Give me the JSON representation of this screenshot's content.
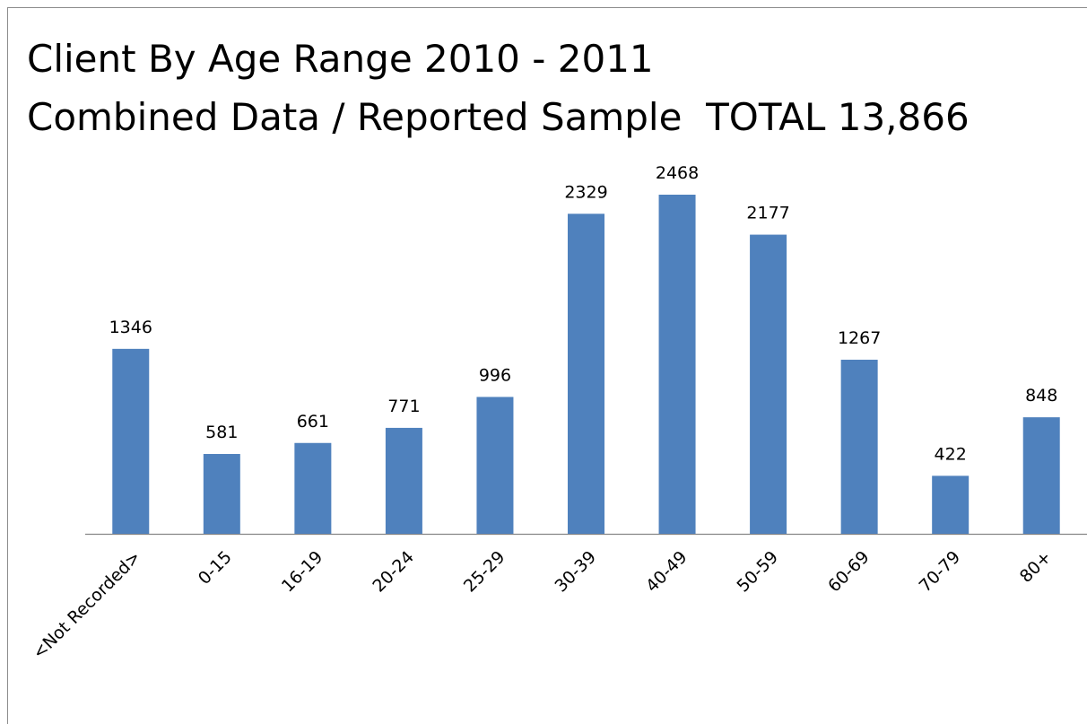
{
  "chart_data": {
    "type": "bar",
    "title": "Client By Age Range 2010 - 2011",
    "subtitle": "Combined Data / Reported Sample  TOTAL 13,866",
    "categories": [
      "<Not Recorded>",
      "0-15",
      "16-19",
      "20-24",
      "25-29",
      "30-39",
      "40-49",
      "50-59",
      "60-69",
      "70-79",
      "80+"
    ],
    "values": [
      1346,
      581,
      661,
      771,
      996,
      2329,
      2468,
      2177,
      1267,
      422,
      848
    ],
    "color": "#4f81bd"
  }
}
